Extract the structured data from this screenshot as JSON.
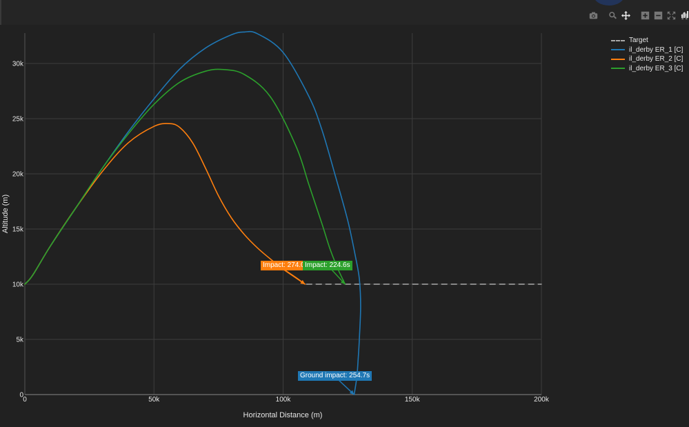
{
  "chart_data": {
    "type": "line",
    "xlabel": "Horizontal Distance (m)",
    "ylabel": "Altitude (m)",
    "xlim": [
      0,
      200000
    ],
    "ylim": [
      0,
      33000
    ],
    "x_ticks": [
      "0",
      "50k",
      "100k",
      "150k",
      "200k"
    ],
    "y_ticks": [
      "0",
      "5k",
      "10k",
      "15k",
      "20k",
      "25k",
      "30k"
    ],
    "grid": true,
    "legend_position": "top-right",
    "series": [
      {
        "name": "Target",
        "style": "dashed",
        "color": "#aaaaaa",
        "x": [
          109000,
          200000
        ],
        "y": [
          10000,
          10000
        ]
      },
      {
        "name": "il_derby ER_1 [C]",
        "color": "#1f77b4",
        "x": [
          0,
          3000,
          10000,
          20000,
          30000,
          40000,
          50000,
          60000,
          70000,
          80000,
          85000,
          90000,
          100000,
          110000,
          115000,
          120000,
          125000,
          128000,
          129500,
          130000,
          129500,
          129000,
          128500,
          127500
        ],
        "y": [
          10000,
          10800,
          13500,
          17000,
          20500,
          23800,
          26800,
          29500,
          31400,
          32600,
          32850,
          32700,
          31000,
          27000,
          24000,
          20000,
          15800,
          12500,
          10500,
          8000,
          5000,
          3000,
          1500,
          0
        ]
      },
      {
        "name": "il_derby ER_2 [C]",
        "color": "#ff7f0e",
        "x": [
          0,
          3000,
          10000,
          20000,
          30000,
          40000,
          50000,
          56000,
          60000,
          65000,
          70000,
          75000,
          80000,
          85000,
          90000,
          95000,
          100000,
          105000,
          108500
        ],
        "y": [
          10000,
          10800,
          13500,
          17000,
          20200,
          22800,
          24300,
          24550,
          24200,
          22800,
          20500,
          18000,
          16000,
          14500,
          13300,
          12300,
          11400,
          10600,
          10000
        ]
      },
      {
        "name": "il_derby ER_3 [C]",
        "color": "#2ca02c",
        "x": [
          0,
          3000,
          10000,
          20000,
          30000,
          40000,
          50000,
          60000,
          70000,
          77000,
          85000,
          95000,
          105000,
          110000,
          115000,
          118000,
          121000,
          124000
        ],
        "y": [
          10000,
          10800,
          13500,
          17000,
          20500,
          23600,
          26300,
          28300,
          29300,
          29450,
          29000,
          27000,
          22500,
          19000,
          15500,
          13300,
          11500,
          10000
        ]
      }
    ],
    "annotations": [
      {
        "text": "Impact: 274.0s",
        "x": 108500,
        "y": 10000,
        "color": "#ff7f0e"
      },
      {
        "text": "Impact: 224.6s",
        "x": 124000,
        "y": 10000,
        "color": "#2ca02c"
      },
      {
        "text": "Ground impact: 254.7s",
        "x": 127500,
        "y": 0,
        "color": "#1f77b4"
      }
    ]
  },
  "legend": [
    {
      "label": "Target",
      "color": "#aaaaaa",
      "dashed": true
    },
    {
      "label": "il_derby ER_1 [C]",
      "color": "#1f77b4"
    },
    {
      "label": "il_derby ER_2 [C]",
      "color": "#ff7f0e"
    },
    {
      "label": "il_derby ER_3 [C]",
      "color": "#2ca02c"
    }
  ],
  "modebar": [
    "camera-icon",
    "zoom-icon",
    "pan-icon",
    "zoom-in-icon",
    "zoom-out-icon",
    "autoscale-icon",
    "reset-axes-icon"
  ]
}
